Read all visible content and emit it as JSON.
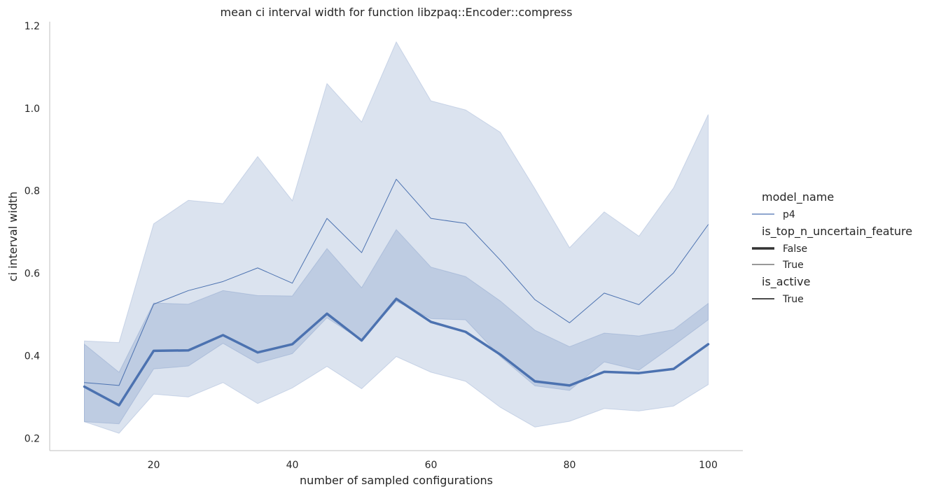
{
  "chart_data": {
    "type": "line",
    "title": "mean ci interval width for function libzpaq::Encoder::compress",
    "xlabel": "number of sampled configurations",
    "ylabel": "ci interval width",
    "xlim": [
      5,
      105
    ],
    "ylim": [
      0.17,
      1.21
    ],
    "xticks": [
      20,
      40,
      60,
      80,
      100
    ],
    "yticks": [
      0.2,
      0.4,
      0.6,
      0.8,
      1.0,
      1.2
    ],
    "ytick_labels": [
      "0.2",
      "0.4",
      "0.6",
      "0.8",
      "1.0",
      "1.2"
    ],
    "grid": false,
    "legend_placement": "right",
    "color": "#4c72b0",
    "band_color": "#4c72b0",
    "x": [
      10,
      15,
      20,
      25,
      30,
      35,
      40,
      45,
      50,
      55,
      60,
      65,
      70,
      75,
      80,
      85,
      90,
      95,
      100
    ],
    "series": [
      {
        "name": "False",
        "style": "thick",
        "values": [
          0.325,
          0.28,
          0.412,
          0.413,
          0.45,
          0.408,
          0.428,
          0.502,
          0.437,
          0.538,
          0.482,
          0.458,
          0.403,
          0.338,
          0.328,
          0.361,
          0.358,
          0.368,
          0.428
        ],
        "ci_low": [
          0.24,
          0.235,
          0.368,
          0.375,
          0.43,
          0.382,
          0.405,
          0.492,
          0.437,
          0.532,
          0.49,
          0.487,
          0.398,
          0.327,
          0.316,
          0.385,
          0.365,
          0.425,
          0.487
        ],
        "ci_high": [
          0.428,
          0.36,
          0.528,
          0.525,
          0.558,
          0.546,
          0.545,
          0.66,
          0.565,
          0.706,
          0.615,
          0.592,
          0.533,
          0.462,
          0.422,
          0.455,
          0.448,
          0.463,
          0.527
        ]
      },
      {
        "name": "True",
        "style": "thin",
        "values": [
          0.335,
          0.328,
          0.525,
          0.558,
          0.58,
          0.613,
          0.576,
          0.733,
          0.65,
          0.828,
          0.733,
          0.721,
          0.632,
          0.536,
          0.48,
          0.552,
          0.524,
          0.601,
          0.718
        ],
        "ci_low": [
          0.24,
          0.212,
          0.307,
          0.3,
          0.335,
          0.284,
          0.322,
          0.374,
          0.32,
          0.398,
          0.36,
          0.338,
          0.275,
          0.227,
          0.241,
          0.272,
          0.266,
          0.278,
          0.33
        ],
        "ci_high": [
          0.436,
          0.432,
          0.72,
          0.777,
          0.769,
          0.883,
          0.776,
          1.06,
          0.967,
          1.161,
          1.018,
          0.996,
          0.942,
          0.805,
          0.662,
          0.749,
          0.69,
          0.807,
          0.985
        ]
      }
    ],
    "legend": {
      "groups": [
        {
          "title": "model_name",
          "items": [
            {
              "label": "p4",
              "kind": "color"
            }
          ]
        },
        {
          "title": "is_top_n_uncertain_feature",
          "items": [
            {
              "label": "False",
              "kind": "thick"
            },
            {
              "label": "True",
              "kind": "thin"
            }
          ]
        },
        {
          "title": "is_active",
          "items": [
            {
              "label": "True",
              "kind": "solid"
            }
          ]
        }
      ]
    }
  }
}
